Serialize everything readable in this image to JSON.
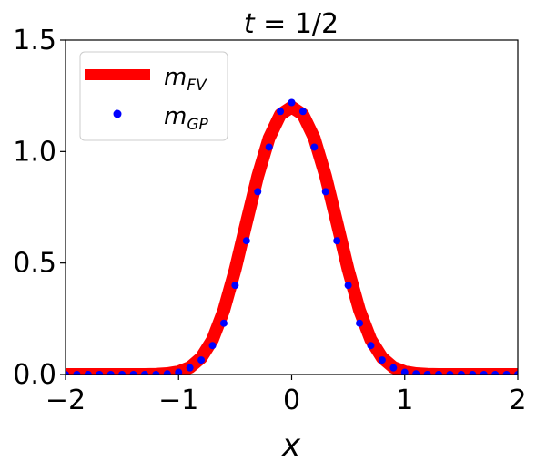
{
  "chart_data": {
    "type": "line",
    "title": {
      "var": "t",
      "eq": "= 1/2"
    },
    "xlabel": "x",
    "ylabel": "",
    "xlim": [
      -2,
      2
    ],
    "ylim": [
      0,
      1.5
    ],
    "grid": false,
    "legend_placement": "top-left",
    "x_ticks": [
      {
        "value": -2,
        "label": "−2"
      },
      {
        "value": -1,
        "label": "−1"
      },
      {
        "value": 0,
        "label": "0"
      },
      {
        "value": 1,
        "label": "1"
      },
      {
        "value": 2,
        "label": "2"
      }
    ],
    "y_ticks": [
      {
        "value": 0,
        "label": "0.0"
      },
      {
        "value": 0.5,
        "label": "0.5"
      },
      {
        "value": 1.0,
        "label": "1.0"
      },
      {
        "value": 1.5,
        "label": "1.5"
      }
    ],
    "series": [
      {
        "name": "m_FV",
        "legend": {
          "base": "m",
          "sub": "FV"
        },
        "style": "line",
        "color": "#ff0000",
        "x": [
          -2.0,
          -1.9,
          -1.8,
          -1.7,
          -1.6,
          -1.5,
          -1.4,
          -1.3,
          -1.2,
          -1.1,
          -1.0,
          -0.9,
          -0.8,
          -0.7,
          -0.6,
          -0.5,
          -0.4,
          -0.3,
          -0.2,
          -0.1,
          0.0,
          0.1,
          0.2,
          0.3,
          0.4,
          0.5,
          0.6,
          0.7,
          0.8,
          0.9,
          1.0,
          1.1,
          1.2,
          1.3,
          1.4,
          1.5,
          1.6,
          1.7,
          1.8,
          1.9,
          2.0
        ],
        "y": [
          0.0,
          0.0,
          0.0,
          0.0,
          0.0,
          0.0,
          0.0,
          0.0,
          0.001,
          0.004,
          0.012,
          0.032,
          0.075,
          0.156,
          0.288,
          0.47,
          0.682,
          0.89,
          1.06,
          1.166,
          1.2,
          1.166,
          1.06,
          0.89,
          0.682,
          0.47,
          0.288,
          0.156,
          0.075,
          0.032,
          0.012,
          0.004,
          0.001,
          0.0,
          0.0,
          0.0,
          0.0,
          0.0,
          0.0,
          0.0,
          0.0
        ]
      },
      {
        "name": "m_GP",
        "legend": {
          "base": "m",
          "sub": "GP"
        },
        "style": "points",
        "color": "#0000ff",
        "x": [
          -2.0,
          -1.9,
          -1.8,
          -1.7,
          -1.6,
          -1.5,
          -1.4,
          -1.3,
          -1.2,
          -1.1,
          -1.0,
          -0.9,
          -0.8,
          -0.7,
          -0.6,
          -0.5,
          -0.4,
          -0.3,
          -0.2,
          -0.1,
          0.0,
          0.1,
          0.2,
          0.3,
          0.4,
          0.5,
          0.6,
          0.7,
          0.8,
          0.9,
          1.0,
          1.1,
          1.2,
          1.3,
          1.4,
          1.5,
          1.6,
          1.7,
          1.8,
          1.9,
          2.0
        ],
        "y": [
          0.0,
          0.0,
          0.0,
          0.0,
          0.0,
          0.0,
          0.0,
          0.0,
          0.0,
          0.003,
          0.01,
          0.03,
          0.065,
          0.13,
          0.23,
          0.4,
          0.6,
          0.82,
          1.02,
          1.18,
          1.22,
          1.18,
          1.02,
          0.82,
          0.6,
          0.4,
          0.23,
          0.13,
          0.065,
          0.03,
          0.01,
          0.003,
          0.0,
          0.0,
          0.0,
          0.0,
          0.0,
          0.0,
          0.0,
          0.0,
          0.0
        ]
      }
    ]
  }
}
